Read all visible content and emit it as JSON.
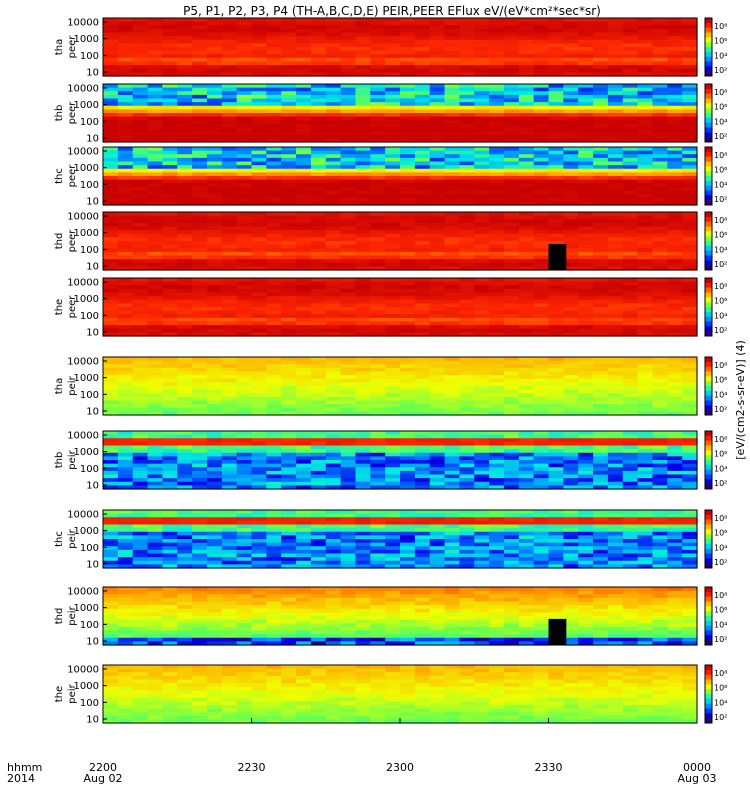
{
  "chart_data": {
    "type": "heatmap",
    "title": "P5, P1, P2, P3, P4 (TH-A,B,C,D,E) PEIR,PEER EFlux eV/(eV*cm²*sec*sr)",
    "colorbar_label": "[eV/(cm2-s-sr-eV)] (4)",
    "x_axis": {
      "row_labels": [
        "hhmm",
        "2014"
      ],
      "ticks": [
        {
          "label": "2200",
          "sub": "Aug 02",
          "hours": 0
        },
        {
          "label": "2230",
          "sub": "",
          "hours": 0.5
        },
        {
          "label": "2300",
          "sub": "",
          "hours": 1.0
        },
        {
          "label": "2330",
          "sub": "",
          "hours": 1.5
        },
        {
          "label": "0000",
          "sub": "Aug 03",
          "hours": 2.0
        }
      ],
      "range_hours": [
        0,
        2
      ]
    },
    "y_ticks": [
      "10000",
      "1000",
      "100",
      "10"
    ],
    "panels": [
      {
        "probe": "tha",
        "species": "peer",
        "profile": "elec_high",
        "cbar": [
          "10⁸",
          "10⁶",
          "10⁴",
          "10²"
        ],
        "gap": null,
        "colors": {
          "floor": "#ff2000",
          "mid": "#ff9d00",
          "band": "#80ff00",
          "noise": "#1010d0"
        }
      },
      {
        "probe": "thb",
        "species": "peer",
        "profile": "elec_noisy_top",
        "cbar": [
          "10⁸",
          "10⁶",
          "10⁴",
          "10²"
        ],
        "gap": null,
        "colors": {
          "floor": "#ff2000",
          "mid": "#ff9d00",
          "band": "#80ff00",
          "noise": "#1010d0"
        }
      },
      {
        "probe": "thc",
        "species": "peer",
        "profile": "elec_noisy_top",
        "cbar": [
          "10⁸",
          "10⁶",
          "10⁴",
          "10²"
        ],
        "gap": null,
        "colors": {
          "floor": "#ff2000",
          "mid": "#ff9d00",
          "band": "#80ff00",
          "noise": "#1010d0"
        }
      },
      {
        "probe": "thd",
        "species": "peer",
        "profile": "elec_high",
        "cbar": [
          "10⁸",
          "10⁶",
          "10⁴",
          "10²"
        ],
        "gap": [
          1.5,
          1.56
        ],
        "colors": {
          "floor": "#ff2000",
          "mid": "#ff9d00",
          "band": "#80ff00",
          "noise": "#1010d0"
        }
      },
      {
        "probe": "the",
        "species": "peer",
        "profile": "elec_high",
        "cbar": [
          "10⁸",
          "10⁶",
          "10⁴",
          "10²"
        ],
        "gap": null,
        "colors": {
          "floor": "#ff2000",
          "mid": "#ff9d00",
          "band": "#80ff00",
          "noise": "#1010d0"
        }
      },
      {
        "probe": "tha",
        "species": "peir",
        "profile": "ion_smooth",
        "cbar": [
          "10⁸",
          "10⁶",
          "10⁴",
          "10²"
        ],
        "gap": null,
        "colors": {
          "floor": "#ff2000",
          "mid": "#ff9d00",
          "band": "#80ff00",
          "noise": "#1010d0"
        }
      },
      {
        "probe": "thb",
        "species": "peir",
        "profile": "ion_band",
        "cbar": [
          "10⁸",
          "10⁶",
          "10⁴",
          "10²"
        ],
        "gap": null,
        "colors": {
          "floor": "#ff2000",
          "mid": "#ff9d00",
          "band": "#80ff00",
          "noise": "#1010d0"
        }
      },
      {
        "probe": "thc",
        "species": "peir",
        "profile": "ion_band",
        "cbar": [
          "10⁸",
          "10⁶",
          "10⁴",
          "10²"
        ],
        "gap": null,
        "colors": {
          "floor": "#ff2000",
          "mid": "#ff9d00",
          "band": "#80ff00",
          "noise": "#1010d0"
        }
      },
      {
        "probe": "thd",
        "species": "peir",
        "profile": "ion_noisy_low",
        "cbar": [
          "10⁸",
          "10⁶",
          "10⁴",
          "10²"
        ],
        "gap": [
          1.5,
          1.56
        ],
        "colors": {
          "floor": "#ff2000",
          "mid": "#ff9d00",
          "band": "#80ff00",
          "noise": "#1010d0"
        }
      },
      {
        "probe": "the",
        "species": "peir",
        "profile": "ion_smooth",
        "cbar": [
          "10⁸",
          "10⁶",
          "10⁴",
          "10²"
        ],
        "gap": null,
        "colors": {
          "floor": "#ff2000",
          "mid": "#ff9d00",
          "band": "#80ff00",
          "noise": "#1010d0"
        }
      }
    ]
  }
}
